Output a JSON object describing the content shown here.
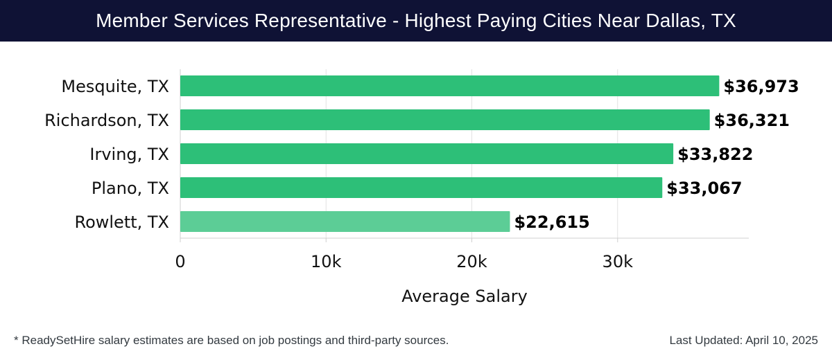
{
  "header": {
    "title": "Member Services Representative - Highest Paying Cities Near Dallas, TX"
  },
  "chart_data": {
    "type": "bar",
    "orientation": "horizontal",
    "title": "Member Services Representative - Highest Paying Cities Near Dallas, TX",
    "xlabel": "Average Salary",
    "ylabel": "",
    "xlim": [
      0,
      39000
    ],
    "xticks": [
      0,
      10000,
      20000,
      30000
    ],
    "xtick_labels": [
      "0",
      "10k",
      "20k",
      "30k"
    ],
    "grid": true,
    "categories": [
      "Mesquite, TX",
      "Richardson, TX",
      "Irving, TX",
      "Plano, TX",
      "Rowlett, TX"
    ],
    "values": [
      36973,
      36321,
      33822,
      33067,
      22615
    ],
    "value_labels": [
      "$36,973",
      "$36,321",
      "$33,822",
      "$33,067",
      "$22,615"
    ],
    "colors": [
      "#2dbf78",
      "#2dbf78",
      "#2dbf78",
      "#2dbf78",
      "#5ccd96"
    ]
  },
  "footer": {
    "note": "* ReadySetHire salary estimates are based on job postings and third-party sources.",
    "updated": "Last Updated: April 10, 2025"
  }
}
